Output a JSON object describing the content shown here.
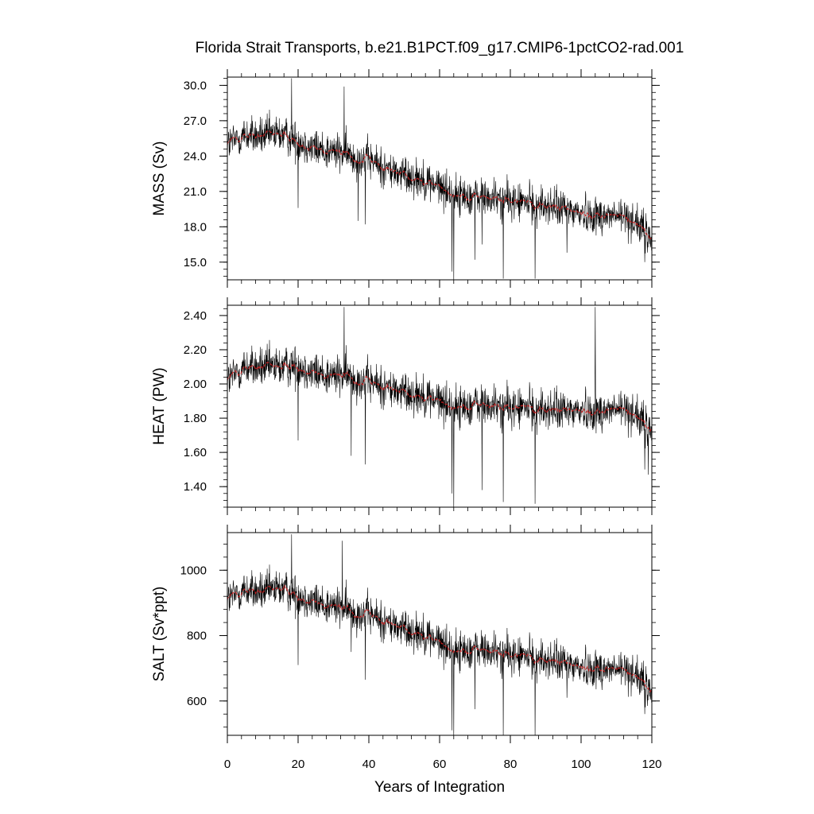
{
  "chart_data": {
    "type": "line",
    "title": "Florida Strait Transports, b.e21.B1PCT.f09_g17.CMIP6-1pctCO2-rad.001",
    "xlabel": "Years of Integration",
    "xlim": [
      0,
      120
    ],
    "x_ticks": [
      "0",
      "20",
      "40",
      "60",
      "80",
      "100",
      "120"
    ],
    "grid": false,
    "legend": "none",
    "colors": {
      "monthly": "#000000",
      "smoothed": "#cc2222"
    },
    "panels": [
      {
        "ylabel": "MASS (Sv)",
        "ylim": [
          13.5,
          30.7
        ],
        "y_ticks": [
          "15.0",
          "18.0",
          "21.0",
          "24.0",
          "27.0",
          "30.0"
        ],
        "anchors": [
          [
            0,
            25.0
          ],
          [
            5,
            25.8
          ],
          [
            10,
            25.6
          ],
          [
            15,
            25.9
          ],
          [
            20,
            25.3
          ],
          [
            25,
            24.6
          ],
          [
            30,
            24.4
          ],
          [
            35,
            24.0
          ],
          [
            40,
            23.7
          ],
          [
            45,
            22.9
          ],
          [
            50,
            22.4
          ],
          [
            55,
            22.1
          ],
          [
            60,
            21.4
          ],
          [
            65,
            20.6
          ],
          [
            70,
            20.6
          ],
          [
            75,
            20.4
          ],
          [
            80,
            20.2
          ],
          [
            85,
            20.0
          ],
          [
            90,
            19.8
          ],
          [
            95,
            19.5
          ],
          [
            100,
            19.2
          ],
          [
            105,
            19.0
          ],
          [
            110,
            18.9
          ],
          [
            115,
            18.6
          ],
          [
            118,
            17.5
          ],
          [
            120,
            16.8
          ]
        ],
        "noise": 1.5,
        "spikes": [
          [
            18.2,
            30.6
          ],
          [
            33,
            29.9
          ],
          [
            20,
            19.6
          ],
          [
            37,
            18.5
          ],
          [
            39,
            18.2
          ],
          [
            63.5,
            14.2
          ],
          [
            64,
            13.5
          ],
          [
            70,
            15.2
          ],
          [
            78,
            13.6
          ],
          [
            87,
            13.6
          ],
          [
            72,
            16.5
          ],
          [
            118,
            15.0
          ],
          [
            96,
            15.8
          ]
        ]
      },
      {
        "ylabel": "HEAT (PW)",
        "ylim": [
          1.28,
          2.46
        ],
        "y_ticks": [
          "1.40",
          "1.60",
          "1.80",
          "2.00",
          "2.20",
          "2.40"
        ],
        "anchors": [
          [
            0,
            2.02
          ],
          [
            5,
            2.1
          ],
          [
            10,
            2.09
          ],
          [
            15,
            2.1
          ],
          [
            20,
            2.11
          ],
          [
            25,
            2.06
          ],
          [
            30,
            2.05
          ],
          [
            35,
            2.04
          ],
          [
            40,
            2.01
          ],
          [
            45,
            1.98
          ],
          [
            50,
            1.95
          ],
          [
            55,
            1.94
          ],
          [
            60,
            1.9
          ],
          [
            65,
            1.86
          ],
          [
            70,
            1.88
          ],
          [
            75,
            1.87
          ],
          [
            80,
            1.86
          ],
          [
            85,
            1.86
          ],
          [
            90,
            1.85
          ],
          [
            95,
            1.84
          ],
          [
            100,
            1.85
          ],
          [
            105,
            1.84
          ],
          [
            110,
            1.85
          ],
          [
            115,
            1.84
          ],
          [
            118,
            1.75
          ],
          [
            120,
            1.73
          ]
        ],
        "noise": 0.11,
        "spikes": [
          [
            33,
            2.45
          ],
          [
            104,
            2.45
          ],
          [
            20,
            1.67
          ],
          [
            35,
            1.58
          ],
          [
            39,
            1.53
          ],
          [
            63.5,
            1.36
          ],
          [
            64,
            1.28
          ],
          [
            72,
            1.38
          ],
          [
            78,
            1.31
          ],
          [
            87,
            1.3
          ],
          [
            118,
            1.5
          ],
          [
            119,
            1.47
          ]
        ]
      },
      {
        "ylabel": "SALT (Sv*ppt)",
        "ylim": [
          495,
          1115
        ],
        "y_ticks": [
          "600",
          "800",
          "1000"
        ],
        "anchors": [
          [
            0,
            910
          ],
          [
            5,
            940
          ],
          [
            10,
            930
          ],
          [
            15,
            945
          ],
          [
            20,
            925
          ],
          [
            25,
            900
          ],
          [
            30,
            890
          ],
          [
            35,
            875
          ],
          [
            40,
            865
          ],
          [
            45,
            840
          ],
          [
            50,
            820
          ],
          [
            55,
            810
          ],
          [
            60,
            780
          ],
          [
            65,
            750
          ],
          [
            70,
            760
          ],
          [
            75,
            750
          ],
          [
            80,
            740
          ],
          [
            85,
            735
          ],
          [
            90,
            725
          ],
          [
            95,
            715
          ],
          [
            100,
            705
          ],
          [
            105,
            700
          ],
          [
            110,
            695
          ],
          [
            115,
            690
          ],
          [
            118,
            645
          ],
          [
            120,
            625
          ]
        ],
        "noise": 55,
        "spikes": [
          [
            18.2,
            1110
          ],
          [
            32.5,
            1090
          ],
          [
            20,
            710
          ],
          [
            35,
            750
          ],
          [
            39,
            665
          ],
          [
            63.5,
            510
          ],
          [
            64,
            495
          ],
          [
            70,
            575
          ],
          [
            78,
            495
          ],
          [
            87,
            495
          ],
          [
            118,
            560
          ],
          [
            96,
            610
          ]
        ]
      }
    ]
  }
}
